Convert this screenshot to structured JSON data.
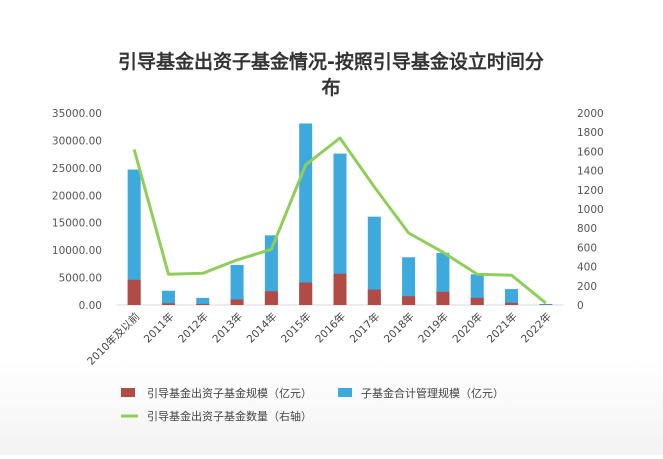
{
  "chart_data": {
    "type": "bar+line",
    "title_line1": "引导基金出资子基金情况-按照引导基金设立时间分",
    "title_line2": "布",
    "categories": [
      "2010年及以前",
      "2011年",
      "2012年",
      "2013年",
      "2014年",
      "2015年",
      "2016年",
      "2017年",
      "2018年",
      "2019年",
      "2020年",
      "2021年",
      "2022年"
    ],
    "series": [
      {
        "name": "引导基金出资子基金规模（亿元）",
        "kind": "bar",
        "color": "#b24a46",
        "values": [
          4600,
          300,
          200,
          1000,
          2500,
          4100,
          5700,
          2800,
          1600,
          2400,
          1300,
          400,
          60
        ]
      },
      {
        "name": "子基金合计管理规模（亿元）",
        "kind": "bar",
        "color": "#3ea9dc",
        "values": [
          24700,
          2600,
          1300,
          7300,
          12700,
          33100,
          27600,
          16100,
          8700,
          9500,
          5600,
          2900,
          200
        ]
      },
      {
        "name": "引导基金出资子基金数量（右轴）",
        "kind": "line",
        "axis": "right",
        "color": "#8fce5a",
        "values": [
          1620,
          320,
          330,
          470,
          580,
          1460,
          1740,
          1230,
          750,
          550,
          320,
          310,
          20
        ]
      }
    ],
    "y_left": {
      "min": 0,
      "max": 35000,
      "ticks": [
        "0.00",
        "5000.00",
        "10000.00",
        "15000.00",
        "20000.00",
        "25000.00",
        "30000.00",
        "35000.00"
      ]
    },
    "y_right": {
      "min": 0,
      "max": 2000,
      "ticks": [
        "0",
        "200",
        "400",
        "600",
        "800",
        "1000",
        "1200",
        "1400",
        "1600",
        "1800",
        "2000"
      ]
    },
    "grid": false,
    "legend_position": "bottom"
  }
}
